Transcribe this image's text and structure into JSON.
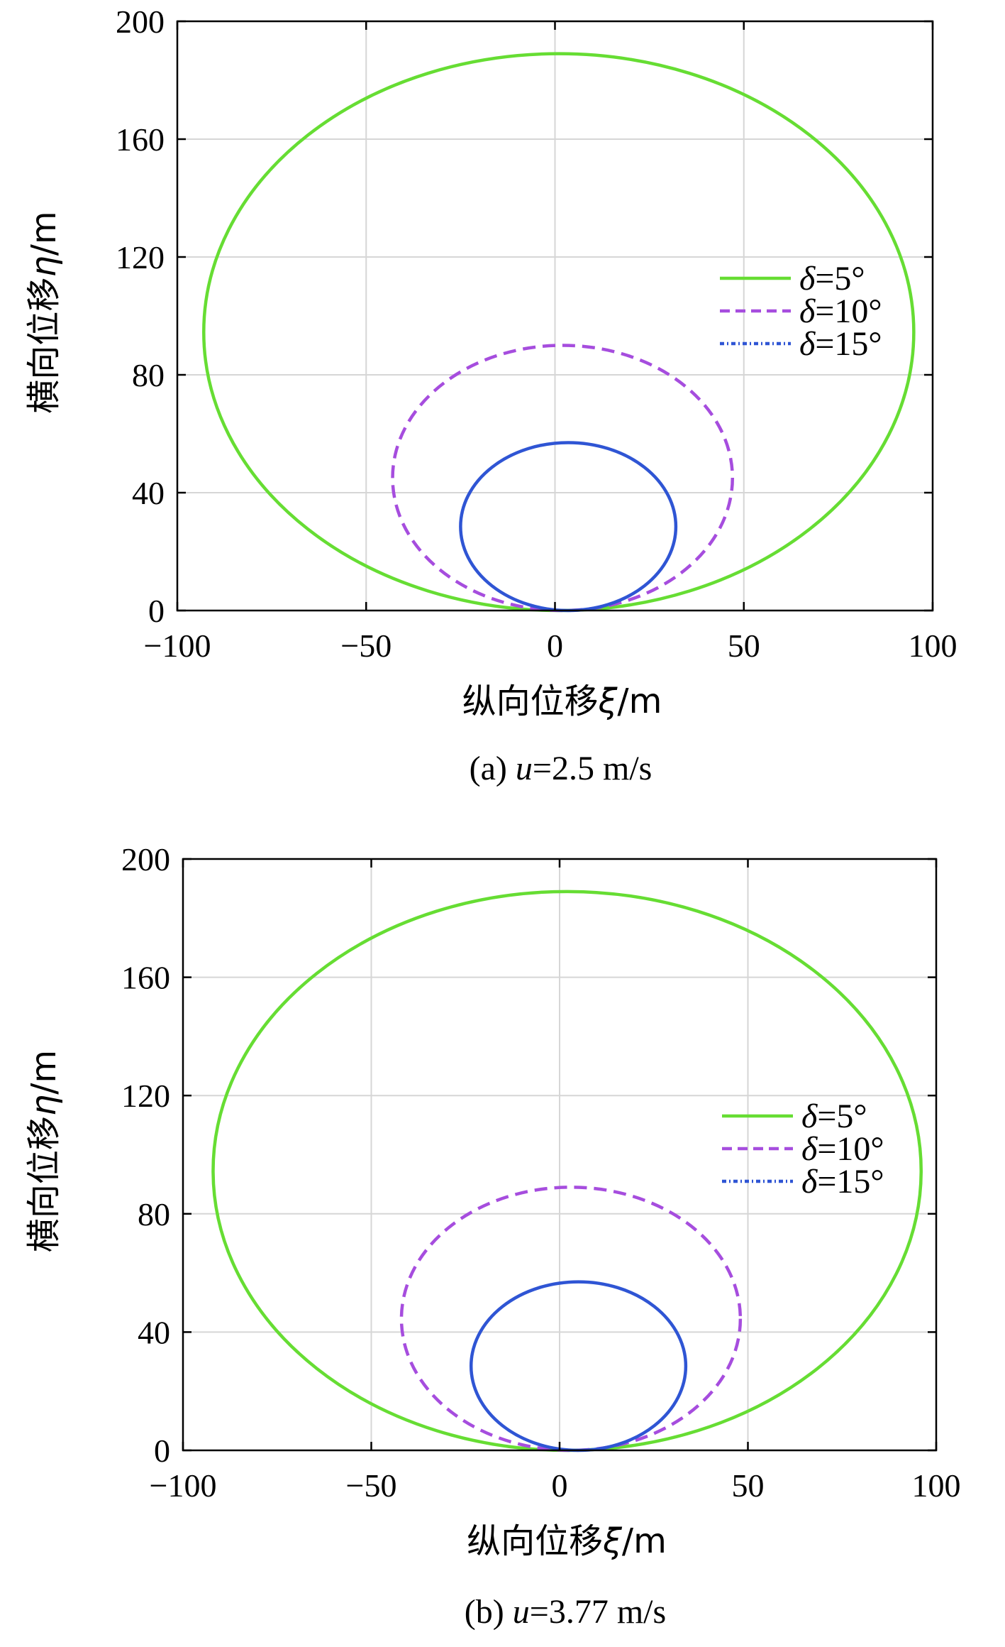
{
  "chart_data": [
    {
      "type": "line",
      "caption_prefix": "(a) ",
      "caption_var": "u",
      "caption_value": "=2.5 m/s",
      "xlabel_text": "纵向位移",
      "xlabel_var": "ξ",
      "xlabel_unit": "/m",
      "ylabel_text": "横向位移",
      "ylabel_var": "η",
      "ylabel_unit": "/m",
      "xlim": [
        -100,
        100
      ],
      "ylim": [
        0,
        200
      ],
      "xticks": [
        -100,
        -50,
        0,
        50,
        100
      ],
      "xtick_labels": [
        "−100",
        "−50",
        "0",
        "50",
        "100"
      ],
      "yticks": [
        0,
        40,
        80,
        120,
        160,
        200
      ],
      "ytick_labels": [
        "0",
        "40",
        "80",
        "120",
        "160",
        "200"
      ],
      "grid": true,
      "legend_position": "right",
      "series": [
        {
          "name": "δ=5°",
          "legend_var": "δ",
          "legend_value": "=5°",
          "color": "#66dd33",
          "style": "solid",
          "center_x": 1,
          "center_y": 94.5,
          "radius_x": 94,
          "radius_y": 94.5
        },
        {
          "name": "δ=10°",
          "legend_var": "δ",
          "legend_value": "=10°",
          "color": "#a64dde",
          "style": "dashed",
          "center_x": 2,
          "center_y": 45,
          "radius_x": 45,
          "radius_y": 45
        },
        {
          "name": "δ=15°",
          "legend_var": "δ",
          "legend_value": "=15°",
          "color": "#2f55d4",
          "style": "dashdot",
          "center_x": 3.5,
          "center_y": 28.5,
          "radius_x": 28.5,
          "radius_y": 28.5
        }
      ]
    },
    {
      "type": "line",
      "caption_prefix": "(b) ",
      "caption_var": "u",
      "caption_value": "=3.77 m/s",
      "xlabel_text": "纵向位移",
      "xlabel_var": "ξ",
      "xlabel_unit": "/m",
      "ylabel_text": "横向位移",
      "ylabel_var": "η",
      "ylabel_unit": "/m",
      "xlim": [
        -100,
        100
      ],
      "ylim": [
        0,
        200
      ],
      "xticks": [
        -100,
        -50,
        0,
        50,
        100
      ],
      "xtick_labels": [
        "−100",
        "−50",
        "0",
        "50",
        "100"
      ],
      "yticks": [
        0,
        40,
        80,
        120,
        160,
        200
      ],
      "ytick_labels": [
        "0",
        "40",
        "80",
        "120",
        "160",
        "200"
      ],
      "grid": true,
      "legend_position": "right",
      "series": [
        {
          "name": "δ=5°",
          "legend_var": "δ",
          "legend_value": "=5°",
          "color": "#66dd33",
          "style": "solid",
          "center_x": 2,
          "center_y": 94.5,
          "radius_x": 94,
          "radius_y": 94.5
        },
        {
          "name": "δ=10°",
          "legend_var": "δ",
          "legend_value": "=10°",
          "color": "#a64dde",
          "style": "dashed",
          "center_x": 3,
          "center_y": 44.5,
          "radius_x": 45,
          "radius_y": 44.5
        },
        {
          "name": "δ=15°",
          "legend_var": "δ",
          "legend_value": "=15°",
          "color": "#2f55d4",
          "style": "dashdot",
          "center_x": 5,
          "center_y": 28.5,
          "radius_x": 28.5,
          "radius_y": 28.5
        }
      ]
    }
  ]
}
